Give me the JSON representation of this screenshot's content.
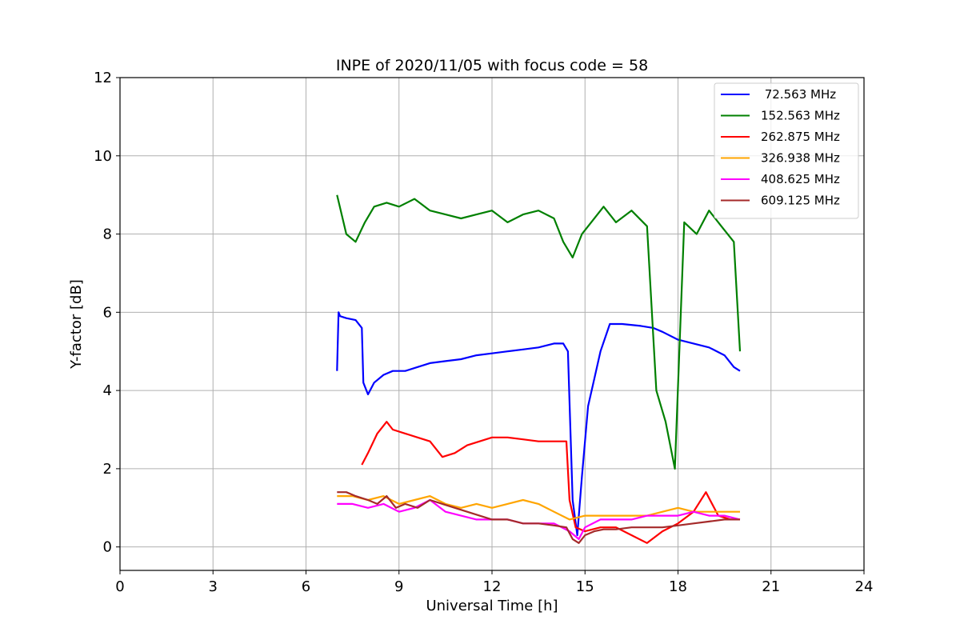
{
  "chart_data": {
    "type": "line",
    "title": "INPE of 2020/11/05 with focus code = 58",
    "xlabel": "Universal Time [h]",
    "ylabel": "Y-factor [dB]",
    "xlim": [
      0,
      24
    ],
    "ylim": [
      -0.6,
      12
    ],
    "xticks": [
      0,
      3,
      6,
      9,
      12,
      15,
      18,
      21,
      24
    ],
    "yticks": [
      0,
      2,
      4,
      6,
      8,
      10,
      12
    ],
    "grid": true,
    "legend_position": "top-right",
    "series": [
      {
        "name": " 72.563 MHz",
        "color": "#0000ff",
        "x": [
          7.0,
          7.05,
          7.1,
          7.3,
          7.6,
          7.8,
          7.85,
          8.0,
          8.2,
          8.5,
          8.8,
          9.2,
          9.6,
          10.0,
          10.5,
          11.0,
          11.5,
          12.0,
          12.5,
          13.0,
          13.5,
          14.0,
          14.3,
          14.45,
          14.6,
          14.75,
          14.9,
          15.1,
          15.3,
          15.5,
          15.8,
          16.2,
          16.8,
          17.2,
          17.5,
          18.0,
          18.5,
          19.0,
          19.5,
          19.8,
          20.0
        ],
        "y": [
          4.5,
          6.0,
          5.9,
          5.85,
          5.8,
          5.6,
          4.2,
          3.9,
          4.2,
          4.4,
          4.5,
          4.5,
          4.6,
          4.7,
          4.75,
          4.8,
          4.9,
          4.95,
          5.0,
          5.05,
          5.1,
          5.2,
          5.2,
          5.0,
          1.2,
          0.3,
          1.8,
          3.6,
          4.3,
          5.0,
          5.7,
          5.7,
          5.65,
          5.6,
          5.5,
          5.3,
          5.2,
          5.1,
          4.9,
          4.6,
          4.5
        ]
      },
      {
        "name": "152.563 MHz",
        "color": "#008000",
        "x": [
          7.0,
          7.3,
          7.6,
          7.9,
          8.2,
          8.6,
          9.0,
          9.5,
          10.0,
          10.5,
          11.0,
          11.5,
          12.0,
          12.5,
          13.0,
          13.5,
          14.0,
          14.3,
          14.6,
          14.9,
          15.2,
          15.6,
          16.0,
          16.5,
          17.0,
          17.3,
          17.6,
          17.9,
          18.2,
          18.6,
          19.0,
          19.4,
          19.8,
          20.0
        ],
        "y": [
          9.0,
          8.0,
          7.8,
          8.3,
          8.7,
          8.8,
          8.7,
          8.9,
          8.6,
          8.5,
          8.4,
          8.5,
          8.6,
          8.3,
          8.5,
          8.6,
          8.4,
          7.8,
          7.4,
          8.0,
          8.3,
          8.7,
          8.3,
          8.6,
          8.2,
          4.0,
          3.2,
          2.0,
          8.3,
          8.0,
          8.6,
          8.2,
          7.8,
          5.0
        ]
      },
      {
        "name": "262.875 MHz",
        "color": "#ff0000",
        "x": [
          7.8,
          8.0,
          8.3,
          8.6,
          8.8,
          9.2,
          9.6,
          10.0,
          10.4,
          10.8,
          11.2,
          11.6,
          12.0,
          12.5,
          13.0,
          13.5,
          14.0,
          14.4,
          14.5,
          14.7,
          15.0,
          15.5,
          16.0,
          16.5,
          17.0,
          17.5,
          18.0,
          18.5,
          18.9,
          19.3,
          19.7,
          20.0
        ],
        "y": [
          2.1,
          2.4,
          2.9,
          3.2,
          3.0,
          2.9,
          2.8,
          2.7,
          2.3,
          2.4,
          2.6,
          2.7,
          2.8,
          2.8,
          2.75,
          2.7,
          2.7,
          2.7,
          1.2,
          0.5,
          0.4,
          0.5,
          0.5,
          0.3,
          0.1,
          0.4,
          0.6,
          0.9,
          1.4,
          0.8,
          0.7,
          0.7
        ]
      },
      {
        "name": "326.938 MHz",
        "color": "#ffa500",
        "x": [
          7.0,
          7.5,
          8.0,
          8.5,
          9.0,
          9.5,
          10.0,
          10.5,
          11.0,
          11.5,
          12.0,
          12.5,
          13.0,
          13.5,
          14.0,
          14.5,
          15.0,
          15.5,
          16.0,
          16.5,
          17.0,
          17.5,
          18.0,
          18.5,
          19.0,
          19.5,
          20.0
        ],
        "y": [
          1.3,
          1.3,
          1.2,
          1.3,
          1.1,
          1.2,
          1.3,
          1.1,
          1.0,
          1.1,
          1.0,
          1.1,
          1.2,
          1.1,
          0.9,
          0.7,
          0.8,
          0.8,
          0.8,
          0.8,
          0.8,
          0.9,
          1.0,
          0.9,
          0.9,
          0.9,
          0.9
        ]
      },
      {
        "name": "408.625 MHz",
        "color": "#ff00ff",
        "x": [
          7.0,
          7.5,
          8.0,
          8.5,
          9.0,
          9.5,
          10.0,
          10.5,
          11.0,
          11.5,
          12.0,
          12.5,
          13.0,
          13.5,
          14.0,
          14.5,
          14.8,
          15.0,
          15.5,
          16.0,
          16.5,
          17.0,
          17.5,
          18.0,
          18.5,
          19.0,
          19.5,
          20.0
        ],
        "y": [
          1.1,
          1.1,
          1.0,
          1.1,
          0.9,
          1.0,
          1.2,
          0.9,
          0.8,
          0.7,
          0.7,
          0.7,
          0.6,
          0.6,
          0.6,
          0.4,
          0.2,
          0.5,
          0.7,
          0.7,
          0.7,
          0.8,
          0.8,
          0.8,
          0.9,
          0.8,
          0.8,
          0.7
        ]
      },
      {
        "name": "609.125 MHz",
        "color": "#a52a2a",
        "x": [
          7.0,
          7.3,
          7.6,
          8.0,
          8.3,
          8.6,
          8.9,
          9.2,
          9.6,
          10.0,
          10.4,
          10.8,
          11.2,
          11.6,
          12.0,
          12.5,
          13.0,
          13.5,
          14.0,
          14.4,
          14.6,
          14.8,
          15.0,
          15.3,
          15.6,
          16.0,
          16.5,
          17.0,
          17.5,
          18.0,
          18.5,
          19.0,
          19.5,
          20.0
        ],
        "y": [
          1.4,
          1.4,
          1.3,
          1.2,
          1.1,
          1.3,
          1.0,
          1.1,
          1.0,
          1.2,
          1.1,
          1.0,
          0.9,
          0.8,
          0.7,
          0.7,
          0.6,
          0.6,
          0.55,
          0.5,
          0.2,
          0.1,
          0.3,
          0.4,
          0.45,
          0.45,
          0.5,
          0.5,
          0.5,
          0.55,
          0.6,
          0.65,
          0.7,
          0.7
        ]
      }
    ]
  }
}
